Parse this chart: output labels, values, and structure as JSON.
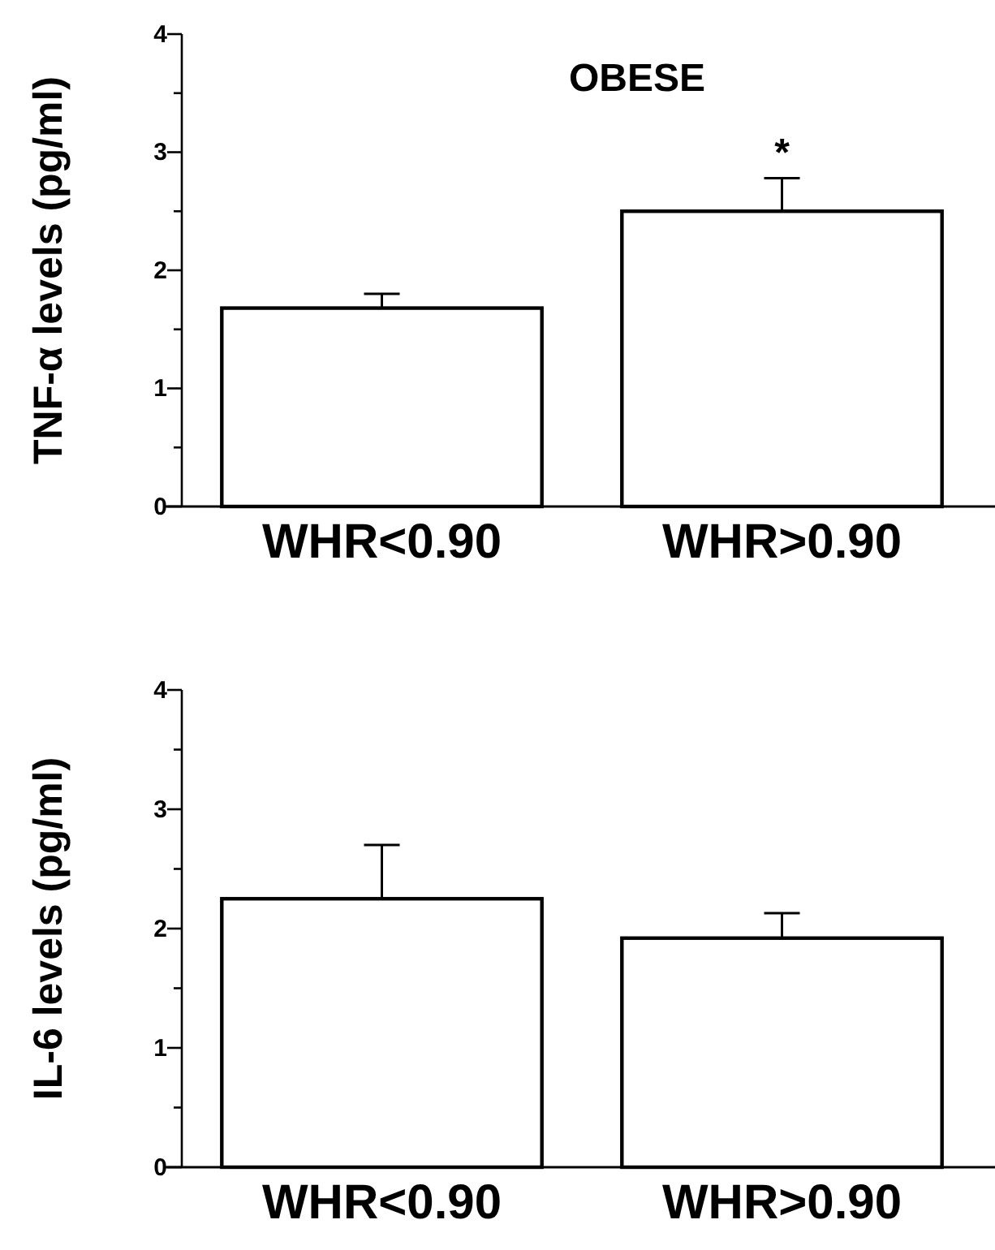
{
  "chart_data": [
    {
      "type": "bar",
      "title": "OBESE",
      "ylabel": "TNF-α levels (pg/ml)",
      "categories": [
        "WHR<0.90",
        "WHR>0.90"
      ],
      "values": [
        1.68,
        2.5
      ],
      "errors": [
        [
          1.68,
          1.8
        ],
        [
          2.5,
          2.78
        ]
      ],
      "color": "#ffffff",
      "ylim": [
        0,
        4
      ],
      "yticks": [
        0,
        {
          "value": 0.5,
          "label": null
        },
        1,
        {
          "value": 1.5,
          "label": null
        },
        2,
        {
          "value": 2.5,
          "label": null
        },
        3,
        {
          "value": 3.5,
          "label": null
        },
        4
      ],
      "annotations": [
        "*"
      ]
    },
    {
      "type": "bar",
      "ylabel": "IL-6 levels (pg/ml)",
      "categories": [
        "WHR<0.90",
        "WHR>0.90"
      ],
      "values": [
        2.25,
        1.92
      ],
      "errors": [
        [
          2.25,
          2.7
        ],
        [
          1.92,
          2.13
        ]
      ],
      "color": "#ffffff",
      "ylim": [
        0,
        4
      ],
      "yticks": [
        0,
        {
          "value": 0.5,
          "label": null
        },
        1,
        {
          "value": 1.5,
          "label": null
        },
        2,
        {
          "value": 2.5,
          "label": null
        },
        3,
        {
          "value": 3.5,
          "label": null
        },
        4
      ]
    }
  ]
}
